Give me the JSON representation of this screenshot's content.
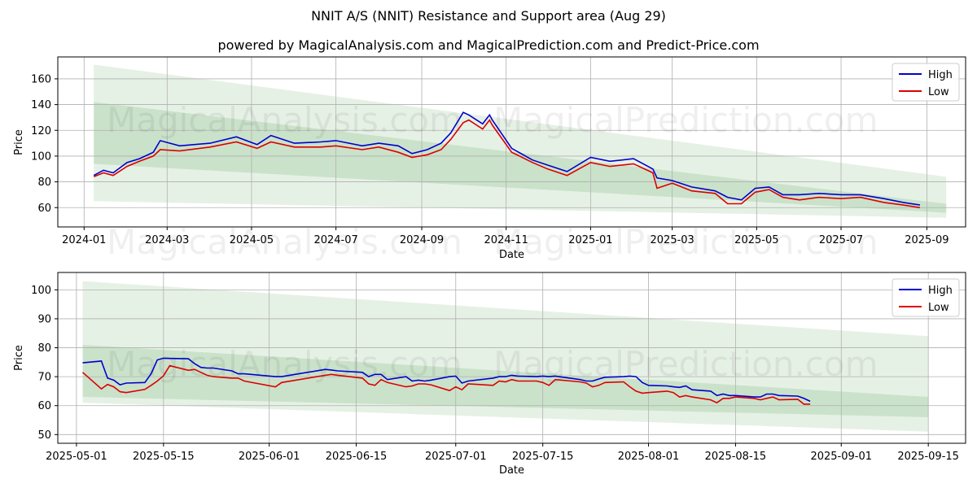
{
  "title": "NNIT A/S (NNIT) Resistance and Support area (Aug 29)",
  "subtitle": "powered by MagicalAnalysis.com and MagicalPrediction.com and Predict-Price.com",
  "watermarks": [
    "MagicalAnalysis.com",
    "MagicalPrediction.com"
  ],
  "colors": {
    "high": "#0000cc",
    "low": "#dd0000",
    "band": "#2e8b2e"
  },
  "chart_data": [
    {
      "type": "line",
      "xlabel": "Date",
      "ylabel": "Price",
      "grid": true,
      "legend": "top-right",
      "x_ticks": [
        "2024-01",
        "2024-03",
        "2024-05",
        "2024-07",
        "2024-09",
        "2024-11",
        "2025-01",
        "2025-03",
        "2025-05",
        "2025-07",
        "2025-09"
      ],
      "y_ticks": [
        60,
        80,
        100,
        120,
        140,
        160
      ],
      "xlim": [
        "2023-12-13",
        "2025-09-29"
      ],
      "ylim": [
        45,
        177
      ],
      "bands": [
        {
          "x": [
            "2024-01-08",
            "2025-09-15"
          ],
          "upper": [
            171,
            84
          ],
          "lower": [
            65,
            52
          ]
        },
        {
          "x": [
            "2024-01-08",
            "2025-09-15"
          ],
          "upper": [
            142,
            63
          ],
          "lower": [
            94,
            56
          ]
        }
      ],
      "series": [
        {
          "name": "High",
          "x": [
            "2024-01-08",
            "2024-01-15",
            "2024-01-22",
            "2024-02-01",
            "2024-02-10",
            "2024-02-20",
            "2024-02-25",
            "2024-03-10",
            "2024-04-01",
            "2024-04-20",
            "2024-05-05",
            "2024-05-15",
            "2024-06-01",
            "2024-06-20",
            "2024-07-01",
            "2024-07-20",
            "2024-08-01",
            "2024-08-15",
            "2024-08-25",
            "2024-09-05",
            "2024-09-15",
            "2024-09-22",
            "2024-10-01",
            "2024-10-05",
            "2024-10-15",
            "2024-10-20",
            "2024-10-22",
            "2024-11-05",
            "2024-11-20",
            "2024-12-01",
            "2024-12-15",
            "2025-01-01",
            "2025-01-15",
            "2025-02-01",
            "2025-02-15",
            "2025-02-18",
            "2025-03-01",
            "2025-03-15",
            "2025-04-01",
            "2025-04-10",
            "2025-04-20",
            "2025-04-30",
            "2025-05-10",
            "2025-05-20",
            "2025-06-01",
            "2025-06-15",
            "2025-07-01",
            "2025-07-15",
            "2025-08-01",
            "2025-08-15",
            "2025-08-27"
          ],
          "values": [
            85,
            89,
            87,
            95,
            98,
            103,
            112,
            108,
            110,
            115,
            109,
            116,
            110,
            111,
            112,
            108,
            110,
            108,
            102,
            105,
            110,
            118,
            134,
            132,
            125,
            132,
            128,
            106,
            97,
            93,
            88,
            99,
            96,
            98,
            90,
            83,
            81,
            76,
            73,
            68,
            66,
            75,
            76,
            70,
            70,
            71,
            70,
            70,
            67,
            64,
            62
          ]
        },
        {
          "name": "Low",
          "x": [
            "2024-01-08",
            "2024-01-15",
            "2024-01-22",
            "2024-02-01",
            "2024-02-10",
            "2024-02-20",
            "2024-02-25",
            "2024-03-10",
            "2024-04-01",
            "2024-04-20",
            "2024-05-05",
            "2024-05-15",
            "2024-06-01",
            "2024-06-20",
            "2024-07-01",
            "2024-07-20",
            "2024-08-01",
            "2024-08-15",
            "2024-08-25",
            "2024-09-05",
            "2024-09-15",
            "2024-09-22",
            "2024-10-01",
            "2024-10-05",
            "2024-10-15",
            "2024-10-20",
            "2024-10-22",
            "2024-11-05",
            "2024-11-20",
            "2024-12-01",
            "2024-12-15",
            "2025-01-01",
            "2025-01-15",
            "2025-02-01",
            "2025-02-15",
            "2025-02-18",
            "2025-03-01",
            "2025-03-15",
            "2025-04-01",
            "2025-04-10",
            "2025-04-20",
            "2025-04-30",
            "2025-05-10",
            "2025-05-20",
            "2025-06-01",
            "2025-06-15",
            "2025-07-01",
            "2025-07-15",
            "2025-08-01",
            "2025-08-15",
            "2025-08-27"
          ],
          "values": [
            84,
            87,
            85,
            92,
            96,
            100,
            105,
            104,
            107,
            111,
            106,
            111,
            107,
            107,
            108,
            105,
            107,
            103,
            99,
            101,
            105,
            113,
            126,
            128,
            121,
            128,
            124,
            103,
            95,
            90,
            85,
            95,
            92,
            94,
            87,
            75,
            79,
            73,
            71,
            63,
            63,
            72,
            74,
            68,
            66,
            68,
            67,
            68,
            64,
            62,
            60
          ]
        }
      ]
    },
    {
      "type": "line",
      "xlabel": "Date",
      "ylabel": "Price",
      "grid": true,
      "legend": "top-right",
      "x_ticks": [
        "2025-05-01",
        "2025-05-15",
        "2025-06-01",
        "2025-06-15",
        "2025-07-01",
        "2025-07-15",
        "2025-08-01",
        "2025-08-15",
        "2025-09-01",
        "2025-09-15"
      ],
      "y_ticks": [
        50,
        60,
        70,
        80,
        90,
        100
      ],
      "xlim": [
        "2025-04-28",
        "2025-09-21"
      ],
      "ylim": [
        47,
        106
      ],
      "bands": [
        {
          "x": [
            "2025-05-02",
            "2025-09-15"
          ],
          "upper": [
            103,
            84
          ],
          "lower": [
            61,
            51
          ]
        },
        {
          "x": [
            "2025-05-02",
            "2025-09-15"
          ],
          "upper": [
            81,
            63
          ],
          "lower": [
            63,
            56
          ]
        }
      ],
      "series": [
        {
          "name": "High",
          "x": [
            "2025-05-02",
            "2025-05-05",
            "2025-05-06",
            "2025-05-07",
            "2025-05-08",
            "2025-05-09",
            "2025-05-12",
            "2025-05-13",
            "2025-05-14",
            "2025-05-15",
            "2025-05-16",
            "2025-05-19",
            "2025-05-20",
            "2025-05-21",
            "2025-05-22",
            "2025-05-23",
            "2025-05-26",
            "2025-05-27",
            "2025-05-28",
            "2025-06-02",
            "2025-06-03",
            "2025-06-10",
            "2025-06-11",
            "2025-06-12",
            "2025-06-16",
            "2025-06-17",
            "2025-06-18",
            "2025-06-19",
            "2025-06-20",
            "2025-06-23",
            "2025-06-24",
            "2025-06-25",
            "2025-06-26",
            "2025-06-27",
            "2025-06-30",
            "2025-07-01",
            "2025-07-02",
            "2025-07-03",
            "2025-07-07",
            "2025-07-08",
            "2025-07-09",
            "2025-07-10",
            "2025-07-11",
            "2025-07-14",
            "2025-07-15",
            "2025-07-16",
            "2025-07-17",
            "2025-07-21",
            "2025-07-22",
            "2025-07-23",
            "2025-07-24",
            "2025-07-25",
            "2025-07-28",
            "2025-07-29",
            "2025-07-30",
            "2025-07-31",
            "2025-08-01",
            "2025-08-04",
            "2025-08-05",
            "2025-08-06",
            "2025-08-07",
            "2025-08-08",
            "2025-08-11",
            "2025-08-12",
            "2025-08-13",
            "2025-08-14",
            "2025-08-15",
            "2025-08-18",
            "2025-08-19",
            "2025-08-20",
            "2025-08-21",
            "2025-08-22",
            "2025-08-25",
            "2025-08-26",
            "2025-08-27"
          ],
          "values": [
            74.8,
            75.4,
            69.5,
            68.8,
            67.2,
            67.8,
            68.0,
            71.0,
            75.8,
            76.4,
            76.3,
            76.2,
            74.5,
            73.2,
            73.0,
            73.0,
            72.0,
            71.0,
            71.0,
            70.0,
            70.0,
            72.5,
            72.3,
            72.0,
            71.5,
            70.0,
            70.8,
            70.8,
            69.0,
            70.0,
            68.5,
            68.8,
            68.5,
            68.8,
            70.0,
            70.2,
            67.8,
            68.5,
            69.5,
            70.0,
            70.0,
            70.5,
            70.2,
            70.0,
            70.2,
            70.0,
            70.2,
            69.0,
            68.5,
            68.5,
            69.2,
            69.8,
            70.0,
            70.2,
            70.0,
            68.0,
            67.0,
            66.8,
            66.5,
            66.3,
            66.8,
            65.5,
            65.0,
            63.5,
            64.0,
            63.5,
            63.5,
            63.0,
            63.0,
            64.0,
            64.0,
            63.5,
            63.3,
            62.5,
            61.5
          ]
        },
        {
          "name": "Low",
          "x": [
            "2025-05-02",
            "2025-05-05",
            "2025-05-06",
            "2025-05-07",
            "2025-05-08",
            "2025-05-09",
            "2025-05-12",
            "2025-05-13",
            "2025-05-14",
            "2025-05-15",
            "2025-05-16",
            "2025-05-19",
            "2025-05-20",
            "2025-05-21",
            "2025-05-22",
            "2025-05-23",
            "2025-05-26",
            "2025-05-27",
            "2025-05-28",
            "2025-06-02",
            "2025-06-03",
            "2025-06-10",
            "2025-06-11",
            "2025-06-12",
            "2025-06-16",
            "2025-06-17",
            "2025-06-18",
            "2025-06-19",
            "2025-06-20",
            "2025-06-23",
            "2025-06-24",
            "2025-06-25",
            "2025-06-26",
            "2025-06-27",
            "2025-06-30",
            "2025-07-01",
            "2025-07-02",
            "2025-07-03",
            "2025-07-07",
            "2025-07-08",
            "2025-07-09",
            "2025-07-10",
            "2025-07-11",
            "2025-07-14",
            "2025-07-15",
            "2025-07-16",
            "2025-07-17",
            "2025-07-21",
            "2025-07-22",
            "2025-07-23",
            "2025-07-24",
            "2025-07-25",
            "2025-07-28",
            "2025-07-29",
            "2025-07-30",
            "2025-07-31",
            "2025-08-01",
            "2025-08-04",
            "2025-08-05",
            "2025-08-06",
            "2025-08-07",
            "2025-08-08",
            "2025-08-11",
            "2025-08-12",
            "2025-08-13",
            "2025-08-14",
            "2025-08-15",
            "2025-08-18",
            "2025-08-19",
            "2025-08-20",
            "2025-08-21",
            "2025-08-22",
            "2025-08-25",
            "2025-08-26",
            "2025-08-27"
          ],
          "values": [
            71.5,
            65.8,
            67.3,
            66.5,
            64.8,
            64.5,
            65.6,
            67.0,
            68.5,
            70.3,
            73.8,
            72.2,
            72.5,
            71.5,
            70.5,
            70.0,
            69.5,
            69.5,
            68.5,
            66.5,
            68.0,
            70.5,
            70.8,
            70.5,
            69.5,
            67.5,
            67.0,
            69.0,
            68.0,
            66.5,
            66.8,
            67.5,
            67.5,
            67.2,
            65.2,
            66.5,
            65.5,
            67.5,
            67.0,
            68.5,
            68.2,
            69.0,
            68.5,
            68.5,
            68.0,
            67.0,
            69.0,
            68.2,
            67.8,
            66.5,
            67.0,
            68.0,
            68.2,
            66.5,
            65.0,
            64.3,
            64.5,
            65.0,
            64.5,
            63.0,
            63.5,
            63.0,
            62.0,
            61.0,
            62.5,
            62.5,
            63.0,
            62.5,
            62.0,
            62.5,
            63.0,
            62.0,
            62.2,
            60.5,
            60.5
          ]
        }
      ]
    }
  ]
}
